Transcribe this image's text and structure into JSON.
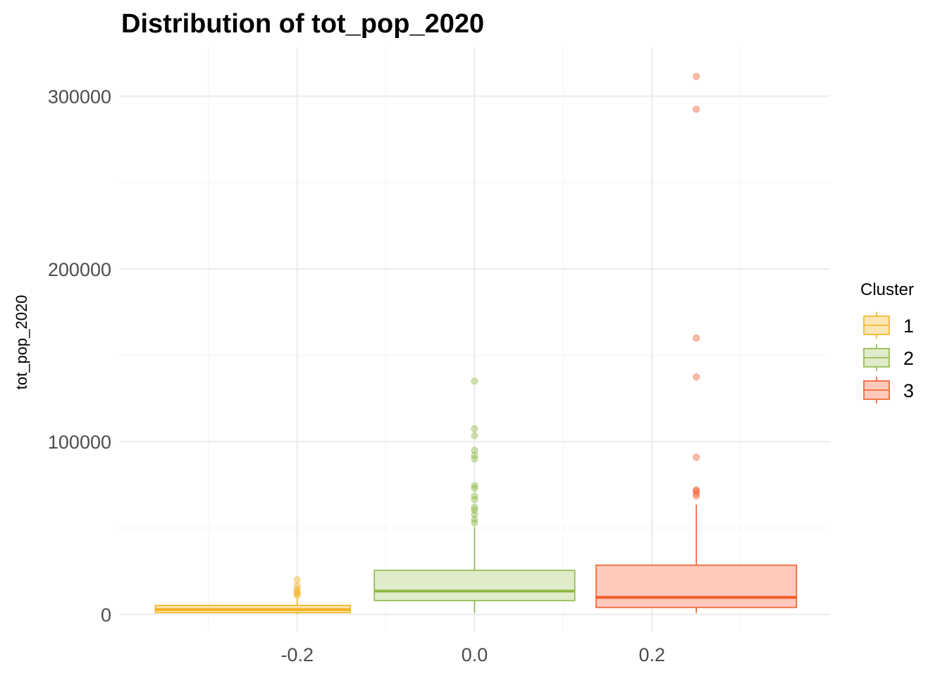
{
  "chart_data": {
    "type": "boxplot",
    "title": "Distribution of tot_pop_2020",
    "xlabel": "",
    "ylabel": "tot_pop_2020",
    "xlim": [
      -0.4,
      0.4
    ],
    "ylim": [
      -10000,
      328000
    ],
    "x_ticks": [
      -0.2,
      0.0,
      0.2
    ],
    "x_tick_labels": [
      "-0.2",
      "0.0",
      "0.2"
    ],
    "x_minor_ticks": [
      -0.3,
      -0.1,
      0.1,
      0.3
    ],
    "y_ticks": [
      0,
      100000,
      200000,
      300000
    ],
    "y_tick_labels": [
      "0",
      "100000",
      "200000",
      "300000"
    ],
    "y_minor_ticks": [
      50000,
      150000,
      250000
    ],
    "grid": true,
    "legend": {
      "title": "Cluster",
      "position": "right"
    },
    "series": [
      {
        "name": "1",
        "color": "#F5B21B",
        "fill": "#FCE5B4",
        "x_center": -0.2,
        "x_range": [
          -0.36,
          -0.14
        ],
        "whisker_low": 0,
        "q1": 1000,
        "median": 2800,
        "q3": 5200,
        "whisker_high": 9000,
        "outliers": [
          11000,
          12000,
          13000,
          14500,
          16500,
          20000
        ]
      },
      {
        "name": "2",
        "color": "#8DB843",
        "fill": "#DFEBC9",
        "x_center": 0.0,
        "x_range": [
          -0.113,
          0.113
        ],
        "whisker_low": 800,
        "q1": 8000,
        "median": 13500,
        "q3": 25500,
        "whisker_high": 50500,
        "outliers": [
          53000,
          55000,
          58000,
          60500,
          62000,
          66500,
          68500,
          73000,
          74500,
          90000,
          92000,
          95000,
          103500,
          107500,
          135000
        ]
      },
      {
        "name": "3",
        "color": "#F25C2A",
        "fill": "#FFC9BB",
        "x_center": 0.25,
        "x_range": [
          0.137,
          0.363
        ],
        "whisker_low": 800,
        "q1": 4000,
        "median": 9800,
        "q3": 28500,
        "whisker_high": 63500,
        "outliers": [
          68500,
          70000,
          71500,
          72000,
          91000,
          137500,
          160000,
          292500,
          311500
        ]
      }
    ]
  }
}
